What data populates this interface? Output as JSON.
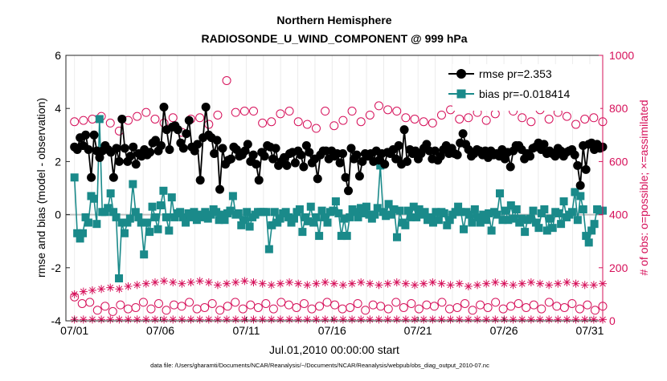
{
  "chart_data": {
    "type": "line",
    "title": "Northern Hemisphere",
    "subtitle": "RADIOSONDE_U_WIND_COMPONENT @ 999 hPa",
    "xlabel": "Jul.01,2010 00:00:00 start",
    "ylabel": "rmse and bias (model - observation)",
    "y2label": "# of obs: o=possible; ×=assimilated",
    "footnote": "data file: /Users/gharamti/Documents/NCAR/Reanalysis/~/Documents/NCAR/Reanalysis/webpub/obs_diag_output_2010-07.nc",
    "xlim": [
      0.5,
      31.75
    ],
    "ylim": [
      -4,
      6
    ],
    "y2lim": [
      0,
      1000
    ],
    "x_ticks": [
      1,
      6,
      11,
      16,
      21,
      26,
      31
    ],
    "x_tick_labels": [
      "07/01",
      "07/06",
      "07/11",
      "07/16",
      "07/21",
      "07/26",
      "07/31"
    ],
    "y_ticks": [
      -4,
      -2,
      0,
      2,
      4,
      6
    ],
    "y_tick_labels": [
      "-4",
      "-2",
      "0",
      "2",
      "4",
      "6"
    ],
    "y2_ticks": [
      0,
      200,
      400,
      600,
      800,
      1000
    ],
    "y2_tick_labels": [
      "0",
      "200",
      "400",
      "600",
      "800",
      "1000"
    ],
    "legend_position": "top-right",
    "colors": {
      "rmse": "#000000",
      "bias": "#1a8a8a",
      "obs": "#d6105a",
      "zero_line": "#c0c0c0",
      "axis": "#262626"
    },
    "series": [
      {
        "name": "rmse pr=2.353",
        "axis": "left",
        "marker": "circle",
        "values": [
          2.55,
          2.45,
          2.9,
          2.6,
          3.0,
          2.45,
          1.4,
          3.0,
          2.4,
          2.15,
          2.4,
          2.6,
          2.45,
          2.35,
          1.4,
          2.5,
          2.0,
          3.6,
          2.5,
          2.0,
          2.2,
          2.55,
          1.9,
          2.3,
          2.2,
          2.45,
          2.25,
          2.35,
          2.7,
          2.8,
          2.4,
          2.6,
          4.05,
          3.2,
          2.45,
          3.3,
          3.35,
          3.2,
          2.7,
          2.5,
          3.05,
          3.55,
          2.55,
          2.4,
          2.65,
          1.3,
          2.9,
          4.05,
          3.0,
          2.9,
          2.3,
          2.8,
          0.95,
          2.5,
          1.9,
          2.05,
          2.1,
          2.55,
          2.45,
          2.2,
          2.25,
          2.4,
          2.65,
          2.0,
          2.25,
          1.9,
          1.3,
          2.35,
          2.2,
          2.6,
          2.55,
          2.1,
          2.5,
          1.85,
          2.0,
          2.15,
          1.85,
          2.3,
          2.35,
          1.95,
          2.4,
          2.25,
          1.8,
          2.6,
          2.35,
          1.95,
          2.1,
          1.35,
          2.25,
          2.4,
          2.4,
          2.1,
          2.4,
          2.2,
          2.3,
          1.95,
          2.3,
          1.4,
          0.9,
          2.5,
          2.1,
          2.25,
          1.45,
          2.0,
          2.3,
          2.2,
          2.3,
          2.0,
          2.4,
          2.05,
          2.3,
          1.9,
          2.35,
          2.3,
          2.45,
          2.1,
          2.6,
          1.9,
          3.2,
          2.0,
          2.45,
          2.3,
          2.4,
          2.1,
          2.3,
          2.5,
          2.65,
          2.4,
          2.1,
          2.4,
          2.05,
          2.2,
          2.45,
          2.6,
          2.3,
          2.5,
          2.3,
          2.25,
          2.7,
          3.05,
          2.65,
          2.45,
          2.2,
          2.3,
          2.45,
          2.4,
          2.25,
          2.4,
          2.15,
          2.4,
          2.25,
          2.3,
          2.2,
          2.45,
          2.1,
          2.35,
          1.8,
          2.4,
          2.6,
          2.6,
          2.45,
          2.1,
          2.3,
          2.2,
          2.5,
          2.55,
          2.7,
          2.45,
          2.65,
          2.3,
          2.4,
          2.3,
          2.2,
          2.5,
          2.4,
          2.2,
          2.35,
          2.4,
          2.45,
          2.25,
          1.85,
          1.1,
          2.6,
          1.7,
          2.65,
          2.7,
          2.45,
          2.65,
          2.5,
          2.55
        ]
      },
      {
        "name": "bias pr=-0.018414",
        "axis": "left",
        "marker": "square",
        "values": [
          1.4,
          -0.7,
          -0.9,
          -0.7,
          -0.1,
          -0.3,
          0.7,
          0.6,
          -0.35,
          3.6,
          0.1,
          0.1,
          0.25,
          0.8,
          0.1,
          -0.1,
          -2.4,
          -0.3,
          -0.7,
          -0.3,
          -0.15,
          1.15,
          0.1,
          -0.1,
          -0.3,
          -1.5,
          -0.3,
          -0.65,
          0.3,
          -0.1,
          -0.55,
          0.35,
          0.9,
          -0.1,
          -0.6,
          0.65,
          -0.1,
          0.05,
          0.1,
          -0.1,
          -0.3,
          0.05,
          -0.1,
          0.1,
          -0.2,
          0.0,
          -0.1,
          0.1,
          -0.15,
          0.0,
          0.2,
          0.1,
          -0.2,
          0.0,
          -0.2,
          0.05,
          0.15,
          0.7,
          0.0,
          0.05,
          -0.4,
          -0.2,
          0.1,
          -0.45,
          -0.1,
          0.0,
          0.1,
          0.1,
          0.1,
          0.1,
          -1.3,
          -0.4,
          0.1,
          -0.3,
          -0.15,
          0.05,
          0.1,
          -0.1,
          -0.3,
          -0.15,
          0.1,
          0.2,
          -0.65,
          -0.1,
          -0.25,
          0.3,
          -0.3,
          -0.1,
          -0.8,
          0.15,
          -0.1,
          -0.3,
          0.1,
          0.15,
          0.5,
          0.05,
          -0.8,
          -0.15,
          -0.8,
          -0.1,
          0.2,
          0.1,
          -0.1,
          0.25,
          0.05,
          0.3,
          0.0,
          -0.15,
          0.0,
          0.25,
          1.85,
          0.1,
          -0.05,
          0.4,
          0.0,
          0.2,
          -0.85,
          0.15,
          -0.3,
          -0.4,
          0.15,
          -0.1,
          0.3,
          -0.1,
          0.2,
          0.0,
          0.1,
          -0.2,
          -0.1,
          -0.3,
          0.1,
          -0.2,
          0.1,
          0.05,
          -0.4,
          -0.2,
          0.0,
          0.1,
          0.3,
          0.1,
          -0.55,
          0.1,
          0.0,
          -0.3,
          0.2,
          -0.1,
          -0.3,
          0.0,
          -0.2,
          0.05,
          -0.6,
          0.1,
          0.0,
          0.8,
          -0.2,
          0.15,
          -0.2,
          0.35,
          -0.15,
          0.2,
          -0.3,
          -0.15,
          -0.65,
          -0.2,
          -0.15,
          0.15,
          -0.3,
          -0.5,
          0.05,
          0.2,
          -0.6,
          -0.15,
          -0.5,
          0.1,
          0.05,
          -0.35,
          0.5,
          -0.1,
          0.0,
          0.1,
          0.85,
          -0.2,
          0.7,
          0.2,
          -0.8,
          -1.05,
          -0.6,
          -0.35,
          0.2,
          0.15,
          0.15
        ]
      },
      {
        "name": "obs possible",
        "axis": "right",
        "marker": "open-circle",
        "twice_daily_values": [
          750,
          755,
          760,
          770,
          745,
          715,
          755,
          770,
          785,
          760,
          745,
          765,
          710,
          760,
          765,
          740,
          775,
          905,
          785,
          790,
          790,
          745,
          750,
          780,
          790,
          750,
          740,
          725,
          790,
          735,
          755,
          790,
          750,
          775,
          810,
          795,
          790,
          765,
          760,
          750,
          745,
          775,
          795,
          760,
          765,
          785,
          755,
          780,
          810,
          790,
          765,
          750,
          795,
          760,
          785,
          770,
          740,
          760,
          765,
          750
        ],
        "twelve_hourly_obs_low": [
          90,
          65,
          70,
          40,
          55,
          35,
          60,
          45,
          50,
          70,
          45,
          65,
          40,
          60,
          55,
          70,
          45,
          50,
          65,
          40,
          55,
          70,
          45,
          60,
          50,
          65,
          45,
          70,
          60,
          50,
          65,
          45,
          55,
          70,
          60,
          45,
          50,
          65,
          40,
          60,
          55,
          45,
          70,
          50,
          65,
          45,
          60,
          55,
          70,
          45,
          50,
          65,
          40,
          60,
          50,
          70,
          45,
          55,
          65,
          50,
          60,
          45,
          70,
          55,
          50,
          65,
          45,
          60,
          40,
          55
        ]
      },
      {
        "name": "obs assimilated",
        "axis": "right",
        "marker": "asterisk",
        "twice_daily_values": [
          100,
          110,
          115,
          120,
          125,
          120,
          130,
          135,
          140,
          145,
          150,
          145,
          140,
          145,
          150,
          145,
          135,
          140,
          145,
          150,
          145,
          140,
          135,
          140,
          145,
          140,
          135,
          140,
          145,
          140,
          135,
          140,
          145,
          140,
          135,
          140,
          145,
          140,
          135,
          140,
          145,
          140,
          135,
          140,
          130,
          135,
          140,
          145,
          140,
          135,
          140,
          145,
          140,
          135,
          140,
          145,
          140,
          135,
          135,
          140
        ],
        "twelve_hourly_obs_low": [
          5,
          5,
          5,
          5,
          5,
          5,
          5,
          5,
          5,
          5,
          5,
          5,
          5,
          5,
          5,
          5,
          5,
          5,
          5,
          5,
          5,
          5,
          5,
          5,
          5,
          5,
          5,
          5,
          5,
          5,
          5,
          5,
          5,
          5,
          5,
          5,
          5,
          5,
          5,
          5,
          5,
          5,
          5,
          5,
          5,
          5,
          5,
          5,
          5,
          5,
          5,
          5,
          5,
          5,
          5,
          5,
          5,
          5,
          5,
          5
        ]
      }
    ]
  }
}
